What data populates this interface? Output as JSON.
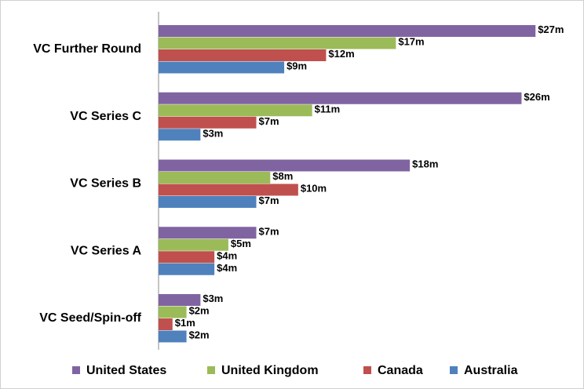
{
  "chart_data": {
    "type": "hbar",
    "categories": [
      "VC Further Round",
      "VC Series C",
      "VC Series B",
      "VC Series A",
      "VC Seed/Spin-off"
    ],
    "series": [
      {
        "name": "United States",
        "color": "#8064a2",
        "values": [
          27,
          26,
          18,
          7,
          3
        ],
        "value_labels": [
          "$27m",
          "$26m",
          "$18m",
          "$7m",
          "$3m"
        ]
      },
      {
        "name": "United Kingdom",
        "color": "#9bbb59",
        "values": [
          17,
          11,
          8,
          5,
          2
        ],
        "value_labels": [
          "$17m",
          "$11m",
          "$8m",
          "$5m",
          "$2m"
        ]
      },
      {
        "name": "Canada",
        "color": "#c0504d",
        "values": [
          12,
          7,
          10,
          4,
          1
        ],
        "value_labels": [
          "$12m",
          "$7m",
          "$10m",
          "$4m",
          "$1m"
        ]
      },
      {
        "name": "Australia",
        "color": "#4f81bd",
        "values": [
          9,
          3,
          7,
          4,
          2
        ],
        "value_labels": [
          "$9m",
          "$3m",
          "$7m",
          "$4m",
          "$2m"
        ]
      }
    ],
    "xlim": [
      0,
      28
    ],
    "legend": "bottom"
  }
}
